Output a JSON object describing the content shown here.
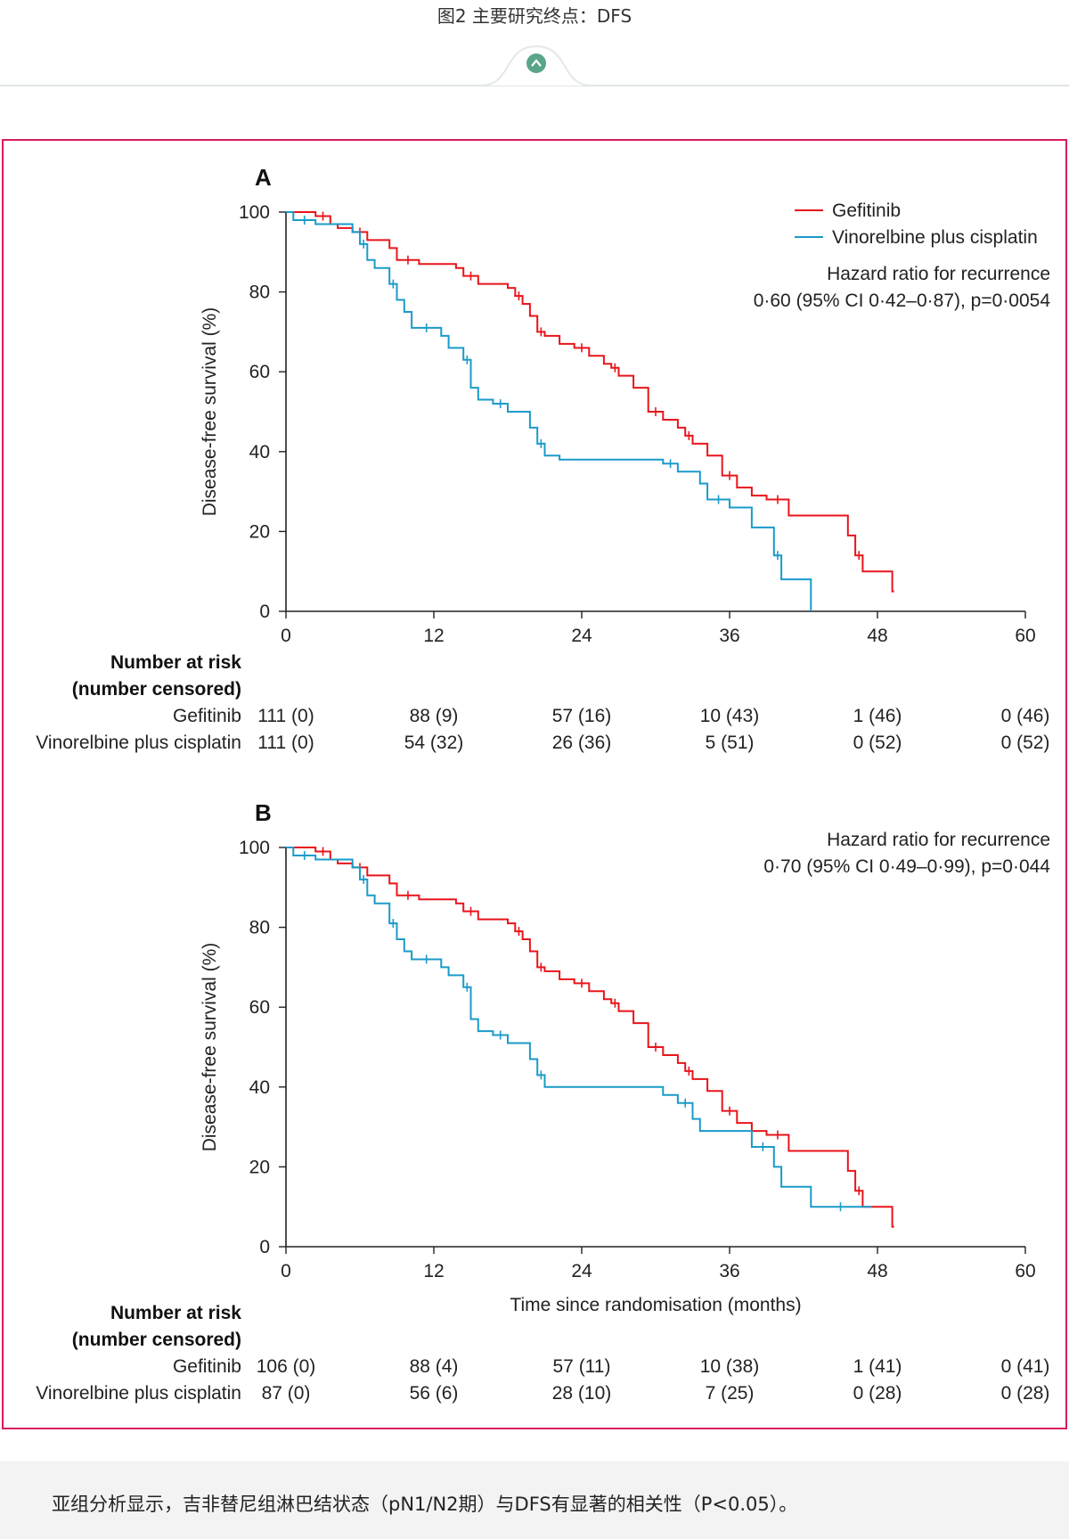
{
  "page": {
    "caption": "图2 主要研究终点：DFS",
    "footer": "亚组分析显示，吉非替尼组淋巴结状态（pN1/N2期）与DFS有显著的相关性（P<0.05）。"
  },
  "colors": {
    "gefitinib": "#e8151b",
    "vinorelbine": "#1a9bc9",
    "frame": "#d81b60",
    "badge": "#5aa58a"
  },
  "chart_data": [
    {
      "panel": "A",
      "type": "line",
      "step": true,
      "ylabel": "Disease-free survival (%)",
      "xlabel": "",
      "xlim": [
        0,
        60
      ],
      "ylim": [
        0,
        100
      ],
      "xticks": [
        0,
        12,
        24,
        36,
        48,
        60
      ],
      "yticks": [
        0,
        20,
        40,
        60,
        80,
        100
      ],
      "legend": [
        "Gefitinib",
        "Vinorelbine plus cisplatin"
      ],
      "annotation": [
        "Hazard ratio for recurrence",
        "0·60 (95% CI 0·42–0·87), p=0·0054"
      ],
      "series": [
        {
          "name": "Gefitinib",
          "x": [
            0,
            2.4,
            3.6,
            4.2,
            5.4,
            6.6,
            8.4,
            9.0,
            10.8,
            13.8,
            14.4,
            15.6,
            18.0,
            18.6,
            19.2,
            19.8,
            20.4,
            21.0,
            22.2,
            23.4,
            24.6,
            25.8,
            26.4,
            27.0,
            28.2,
            29.4,
            30.6,
            31.8,
            32.4,
            33.0,
            34.2,
            35.4,
            36.6,
            37.8,
            39.0,
            40.8,
            45.6,
            46.2,
            46.8,
            49.2
          ],
          "y": [
            100,
            99,
            97,
            96,
            95,
            93,
            91,
            88,
            87,
            86,
            84,
            82,
            81,
            79,
            77,
            74,
            70,
            69,
            67,
            66,
            64,
            62,
            61,
            59,
            56,
            50,
            48,
            46,
            44,
            42,
            39,
            34,
            31,
            29,
            28,
            24,
            19,
            14,
            10,
            5
          ]
        },
        {
          "name": "Vinorelbine plus cisplatin",
          "x": [
            0,
            0.6,
            2.4,
            5.4,
            6.0,
            6.6,
            7.2,
            8.4,
            9.0,
            9.6,
            10.2,
            12.6,
            13.2,
            14.4,
            15.0,
            15.6,
            16.8,
            18.0,
            19.8,
            20.4,
            21.0,
            22.2,
            30.6,
            31.8,
            33.6,
            34.2,
            36.0,
            37.8,
            39.6,
            40.2,
            42.6
          ],
          "y": [
            100,
            98,
            97,
            95,
            92,
            88,
            86,
            82,
            78,
            75,
            71,
            69,
            66,
            63,
            56,
            53,
            52,
            50,
            46,
            42,
            39,
            38,
            37,
            35,
            32,
            28,
            26,
            21,
            14,
            8,
            0
          ]
        }
      ],
      "risk_table": {
        "header": [
          "Number at risk",
          "(number censored)"
        ],
        "rows": [
          {
            "label": "Gefitinib",
            "values": [
              "111 (0)",
              "88 (9)",
              "57 (16)",
              "10 (43)",
              "1 (46)",
              "0 (46)"
            ]
          },
          {
            "label": "Vinorelbine plus cisplatin",
            "values": [
              "111 (0)",
              "54 (32)",
              "26 (36)",
              "5 (51)",
              "0 (52)",
              "0 (52)"
            ]
          }
        ]
      }
    },
    {
      "panel": "B",
      "type": "line",
      "step": true,
      "ylabel": "Disease-free survival (%)",
      "xlabel": "Time since randomisation (months)",
      "xlim": [
        0,
        60
      ],
      "ylim": [
        0,
        100
      ],
      "xticks": [
        0,
        12,
        24,
        36,
        48,
        60
      ],
      "yticks": [
        0,
        20,
        40,
        60,
        80,
        100
      ],
      "legend": [],
      "annotation": [
        "Hazard ratio for recurrence",
        "0·70 (95% CI 0·49–0·99), p=0·044"
      ],
      "series": [
        {
          "name": "Gefitinib",
          "x": [
            0,
            2.4,
            3.6,
            4.2,
            5.4,
            6.6,
            8.4,
            9.0,
            10.8,
            13.8,
            14.4,
            15.6,
            18.0,
            18.6,
            19.2,
            19.8,
            20.4,
            21.0,
            22.2,
            23.4,
            24.6,
            25.8,
            26.4,
            27.0,
            28.2,
            29.4,
            30.6,
            31.8,
            32.4,
            33.0,
            34.2,
            35.4,
            36.6,
            37.8,
            39.0,
            40.8,
            45.6,
            46.2,
            46.8,
            49.2
          ],
          "y": [
            100,
            99,
            97,
            96,
            95,
            93,
            91,
            88,
            87,
            86,
            84,
            82,
            81,
            79,
            77,
            74,
            70,
            69,
            67,
            66,
            64,
            62,
            61,
            59,
            56,
            50,
            48,
            46,
            44,
            42,
            39,
            34,
            31,
            29,
            28,
            24,
            19,
            14,
            10,
            5
          ]
        },
        {
          "name": "Vinorelbine plus cisplatin",
          "x": [
            0,
            0.6,
            2.4,
            5.4,
            6.0,
            6.6,
            7.2,
            8.4,
            9.0,
            9.6,
            10.2,
            12.6,
            13.2,
            14.4,
            15.0,
            15.6,
            16.8,
            18.0,
            19.8,
            20.4,
            21.0,
            30.6,
            31.8,
            33.0,
            33.6,
            37.8,
            39.6,
            40.2,
            42.6,
            47.4
          ],
          "y": [
            100,
            98,
            97,
            95,
            92,
            88,
            86,
            81,
            77,
            74,
            72,
            70,
            68,
            65,
            57,
            54,
            53,
            51,
            47,
            43,
            40,
            38,
            36,
            32,
            29,
            25,
            20,
            15,
            10,
            10
          ]
        }
      ],
      "risk_table": {
        "header": [
          "Number at risk",
          "(number censored)"
        ],
        "rows": [
          {
            "label": "Gefitinib",
            "values": [
              "106 (0)",
              "88 (4)",
              "57 (11)",
              "10 (38)",
              "1 (41)",
              "0 (41)"
            ]
          },
          {
            "label": "Vinorelbine plus cisplatin",
            "values": [
              "87 (0)",
              "56 (6)",
              "28 (10)",
              "7 (25)",
              "0 (28)",
              "0 (28)"
            ]
          }
        ]
      }
    }
  ]
}
